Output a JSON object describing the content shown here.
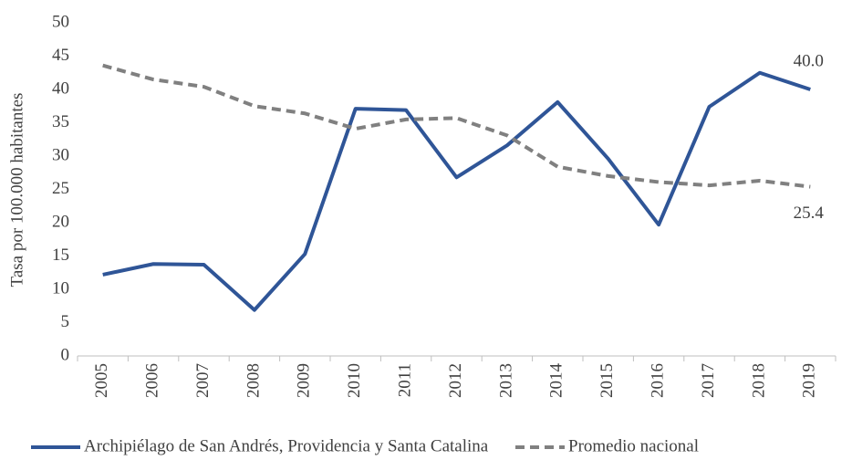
{
  "chart_data": {
    "type": "line",
    "y_label": "Tasa por 100.000 habitantes",
    "categories": [
      "2005",
      "2006",
      "2007",
      "2008",
      "2009",
      "2010",
      "2011",
      "2012",
      "2013",
      "2014",
      "2015",
      "2016",
      "2017",
      "2018",
      "2019"
    ],
    "series": [
      {
        "name": "Archipiélago de San Andrés, Providencia y Santa Catalina",
        "color": "#2f5597",
        "dash": false,
        "values": [
          12.2,
          13.8,
          13.7,
          6.9,
          15.3,
          37.1,
          36.9,
          26.8,
          31.6,
          38.1,
          29.6,
          19.7,
          37.4,
          42.5,
          40.0
        ],
        "value_labels": [
          null,
          null,
          null,
          null,
          null,
          null,
          null,
          null,
          null,
          null,
          null,
          null,
          null,
          null,
          "40.0"
        ]
      },
      {
        "name": "Promedio nacional",
        "color": "#808080",
        "dash": true,
        "values": [
          43.6,
          41.5,
          40.4,
          37.5,
          36.4,
          34.1,
          35.5,
          35.7,
          33.1,
          28.4,
          27.0,
          26.1,
          25.6,
          26.3,
          25.4
        ],
        "value_labels": [
          null,
          null,
          null,
          null,
          null,
          null,
          null,
          null,
          null,
          null,
          null,
          null,
          null,
          null,
          "25.4"
        ]
      }
    ],
    "ylim": [
      0,
      50
    ],
    "yticks": [
      0,
      5,
      10,
      15,
      20,
      25,
      30,
      35,
      40,
      45,
      50
    ],
    "grid": false
  }
}
